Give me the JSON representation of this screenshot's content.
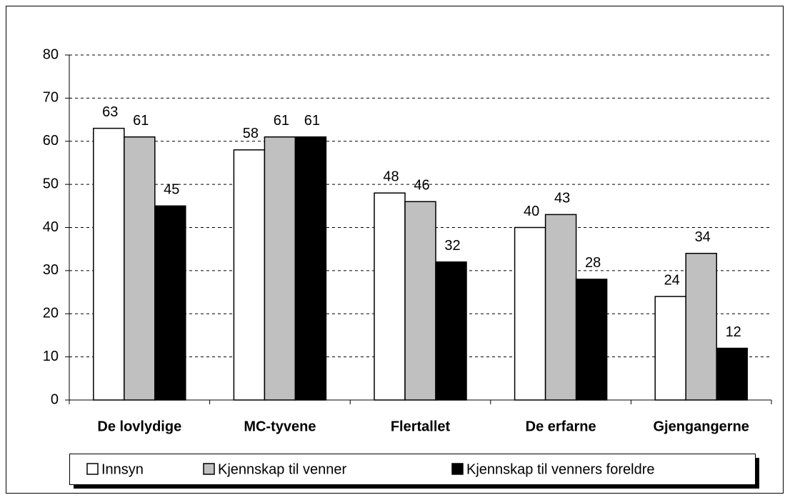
{
  "chart_data": {
    "type": "bar",
    "categories": [
      "De lovlydige",
      "MC-tyvene",
      "Flertallet",
      "De erfarne",
      "Gjengangerne"
    ],
    "series": [
      {
        "name": "Innsyn",
        "color": "#ffffff",
        "values": [
          63,
          58,
          48,
          40,
          24
        ]
      },
      {
        "name": "Kjennskap til venner",
        "color": "#c0c0c0",
        "values": [
          61,
          61,
          46,
          43,
          34
        ]
      },
      {
        "name": "Kjennskap til venners foreldre",
        "color": "#000000",
        "values": [
          45,
          61,
          32,
          28,
          12
        ]
      }
    ],
    "ylim": [
      0,
      80
    ],
    "yticks": [
      0,
      10,
      20,
      30,
      40,
      50,
      60,
      70,
      80
    ],
    "grid": true,
    "legend": "bottom"
  }
}
